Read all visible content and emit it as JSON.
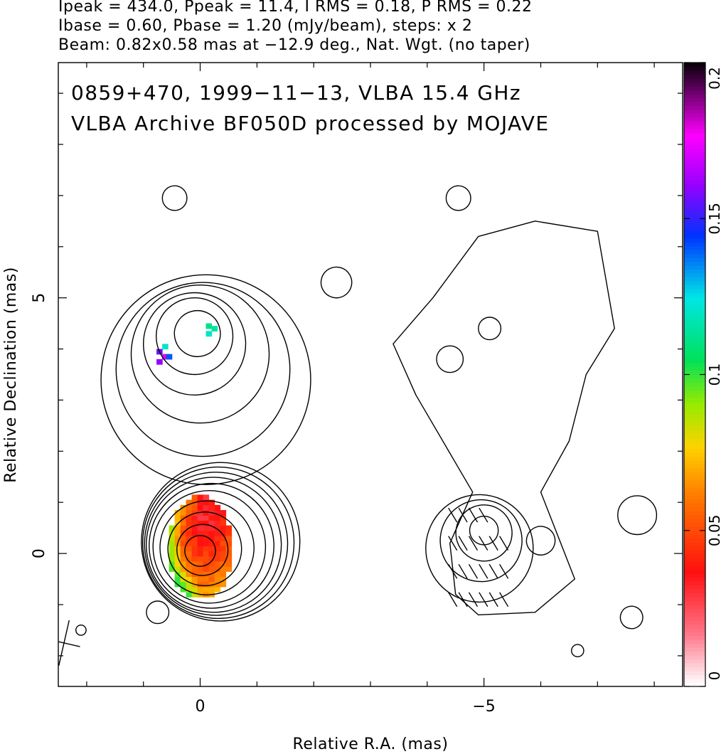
{
  "header": {
    "line1": "Ipeak = 434.0, Ppeak = 11.4, I RMS = 0.18, P RMS = 0.22",
    "line2": "Ibase = 0.60, Pbase = 1.20 (mJy/beam), steps: x 2",
    "line3": "Beam: 0.82x0.58 mas at −12.9 deg., Nat. Wgt. (no taper)"
  },
  "chart_data": {
    "type": "heatmap",
    "title": "0859+470, 1999−11−13, VLBA 15.4 GHz",
    "subtitle": "VLBA Archive BF050D processed by MOJAVE",
    "xlabel": "Relative R.A. (mas)",
    "ylabel": "Relative Declination (mas)",
    "xlim": [
      2.5,
      -8.5
    ],
    "ylim": [
      -2.6,
      9.6
    ],
    "xticks": [
      {
        "value": 0,
        "label": "0"
      },
      {
        "value": -5,
        "label": "−5"
      }
    ],
    "yticks": [
      {
        "value": 0,
        "label": "0"
      },
      {
        "value": 5,
        "label": "5"
      }
    ],
    "colorbar": {
      "range": [
        0,
        0.2
      ],
      "ticks": [
        {
          "value": 0,
          "label": "0"
        },
        {
          "value": 0.05,
          "label": "0.05"
        },
        {
          "value": 0.1,
          "label": "0.1"
        },
        {
          "value": 0.15,
          "label": "0.15"
        },
        {
          "value": 0.2,
          "label": "0.2"
        }
      ]
    },
    "panels": [
      {
        "name": "total-intensity",
        "ra_offset": 0
      },
      {
        "name": "polarized-intensity",
        "ra_offset": -5
      }
    ],
    "core_position": [
      0,
      0
    ],
    "beam": {
      "major": 0.82,
      "minor": 0.58,
      "pa_deg": -12.9
    }
  }
}
